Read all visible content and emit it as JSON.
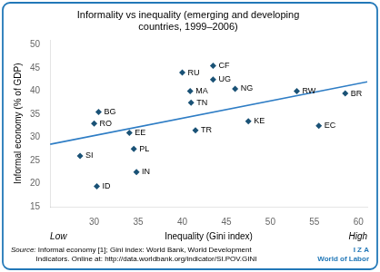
{
  "chart_data": {
    "type": "scatter",
    "title": "Informality vs inequality (emerging and developing\ncountries, 1999–2006)",
    "x_label": "Inequality (Gini index)",
    "y_label": "Informal economy (% of GDP)",
    "x_low_label": "Low",
    "x_high_label": "High",
    "xlim": [
      25,
      61
    ],
    "ylim": [
      15,
      51
    ],
    "xticks": [
      30,
      35,
      40,
      45,
      50,
      55,
      60
    ],
    "yticks": [
      15,
      20,
      25,
      30,
      35,
      40,
      45,
      50
    ],
    "grid": false,
    "marker": "diamond",
    "color": "#1a5276",
    "point_labels": [
      "SI",
      "ID",
      "RO",
      "BG",
      "EE",
      "PL",
      "IN",
      "RU",
      "MA",
      "TN",
      "TR",
      "CF",
      "UG",
      "NG",
      "KE",
      "RW",
      "EC",
      "BR"
    ],
    "x": [
      28.4,
      30.3,
      30.0,
      30.5,
      34.0,
      34.5,
      34.8,
      40.0,
      40.9,
      41.0,
      41.5,
      43.5,
      43.5,
      46.0,
      47.5,
      53.0,
      55.5,
      58.5
    ],
    "values": [
      26.0,
      19.4,
      33.0,
      35.5,
      31.0,
      27.5,
      22.5,
      44.0,
      40.0,
      37.5,
      31.5,
      45.5,
      42.5,
      40.5,
      33.5,
      40.0,
      32.5,
      39.5
    ],
    "trend_line": {
      "x": [
        25,
        61
      ],
      "values": [
        28.5,
        42.0
      ],
      "color": "#2e7dc5"
    },
    "source_label": "Source:",
    "source_text": " Informal economy [1]; Gini index: World Bank, World Development\nIndicators. Online at: http://data.worldbank.org/indicator/SI.POV.GINI",
    "footer": [
      "I Z A",
      "World of Labor"
    ],
    "footer_color": "#2278b8"
  }
}
